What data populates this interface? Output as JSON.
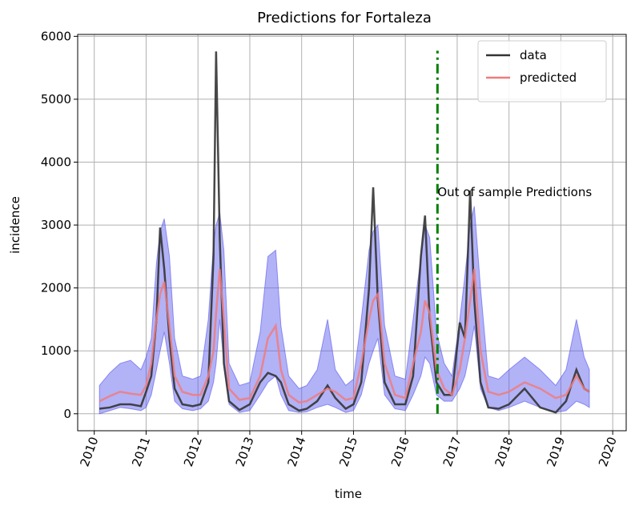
{
  "chart_data": {
    "type": "line",
    "title": "Predictions for Fortaleza",
    "xlabel": "time",
    "ylabel": "incidence",
    "x": [
      2010.1,
      2010.3,
      2010.5,
      2010.7,
      2010.9,
      2011.0,
      2011.1,
      2011.2,
      2011.27,
      2011.35,
      2011.45,
      2011.55,
      2011.7,
      2011.9,
      2012.05,
      2012.2,
      2012.3,
      2012.35,
      2012.42,
      2012.5,
      2012.6,
      2012.8,
      2013.0,
      2013.2,
      2013.35,
      2013.5,
      2013.6,
      2013.75,
      2013.95,
      2014.1,
      2014.3,
      2014.5,
      2014.65,
      2014.85,
      2015.0,
      2015.15,
      2015.3,
      2015.38,
      2015.47,
      2015.6,
      2015.8,
      2016.0,
      2016.15,
      2016.3,
      2016.38,
      2016.47,
      2016.6,
      2016.75,
      2016.9,
      2017.05,
      2017.15,
      2017.25,
      2017.33,
      2017.45,
      2017.6,
      2017.8,
      2018.0,
      2018.3,
      2018.6,
      2018.9,
      2019.1,
      2019.3,
      2019.45,
      2019.55
    ],
    "series": [
      {
        "name": "data",
        "color": "#333333",
        "values": [
          80,
          100,
          150,
          150,
          120,
          350,
          600,
          1500,
          2960,
          2300,
          1200,
          400,
          150,
          120,
          150,
          500,
          2500,
          5760,
          2800,
          800,
          200,
          60,
          150,
          500,
          650,
          600,
          500,
          150,
          50,
          80,
          200,
          450,
          250,
          80,
          150,
          500,
          2000,
          3600,
          1800,
          500,
          150,
          150,
          600,
          2500,
          3150,
          1500,
          500,
          300,
          300,
          1450,
          1200,
          3550,
          1800,
          500,
          100,
          80,
          150,
          400,
          100,
          20,
          200,
          700,
          400,
          350
        ]
      },
      {
        "name": "predicted",
        "color": "#f07b7b",
        "values": [
          200,
          280,
          350,
          320,
          300,
          450,
          800,
          1500,
          1900,
          2100,
          1400,
          600,
          350,
          300,
          300,
          600,
          1000,
          1600,
          2300,
          1500,
          400,
          220,
          250,
          600,
          1200,
          1400,
          700,
          300,
          180,
          200,
          300,
          400,
          350,
          220,
          250,
          800,
          1500,
          1800,
          1900,
          800,
          300,
          250,
          800,
          1300,
          1800,
          1600,
          700,
          400,
          300,
          700,
          1200,
          1800,
          2300,
          1000,
          350,
          300,
          350,
          500,
          400,
          250,
          300,
          600,
          400,
          350
        ]
      }
    ],
    "band": {
      "color": "#5555ee",
      "lower": [
        0,
        50,
        100,
        80,
        50,
        100,
        300,
        700,
        1000,
        1300,
        800,
        200,
        80,
        50,
        80,
        200,
        500,
        800,
        1500,
        800,
        150,
        20,
        50,
        300,
        500,
        600,
        300,
        50,
        20,
        30,
        100,
        150,
        100,
        20,
        50,
        300,
        800,
        1000,
        1200,
        300,
        80,
        50,
        300,
        600,
        900,
        800,
        300,
        200,
        200,
        400,
        600,
        1000,
        1400,
        400,
        100,
        50,
        100,
        200,
        100,
        20,
        50,
        200,
        150,
        100
      ],
      "upper": [
        450,
        650,
        800,
        850,
        700,
        900,
        1200,
        2400,
        2900,
        3100,
        2500,
        1200,
        600,
        550,
        600,
        1500,
        2700,
        3000,
        3200,
        2600,
        800,
        450,
        500,
        1300,
        2500,
        2600,
        1400,
        600,
        400,
        450,
        700,
        1500,
        700,
        450,
        550,
        1500,
        2600,
        2900,
        3000,
        1400,
        600,
        550,
        1500,
        2500,
        3000,
        2800,
        1300,
        800,
        600,
        1500,
        2200,
        3000,
        3300,
        2000,
        600,
        550,
        700,
        900,
        700,
        450,
        700,
        1500,
        900,
        700
      ]
    },
    "vline": {
      "x": 2016.62,
      "y": [
        0,
        5770
      ],
      "color": "green"
    },
    "annotation": {
      "text": "Out of sample Predictions",
      "x": 2016.62,
      "y": 3520
    },
    "xlim": [
      2009.68,
      2020.26
    ],
    "ylim": [
      -270,
      6030
    ],
    "xticks": [
      2010,
      2011,
      2012,
      2013,
      2014,
      2015,
      2016,
      2017,
      2018,
      2019,
      2020
    ],
    "yticks": [
      0,
      1000,
      2000,
      3000,
      4000,
      5000,
      6000
    ],
    "grid": true,
    "legend": "upper right"
  }
}
